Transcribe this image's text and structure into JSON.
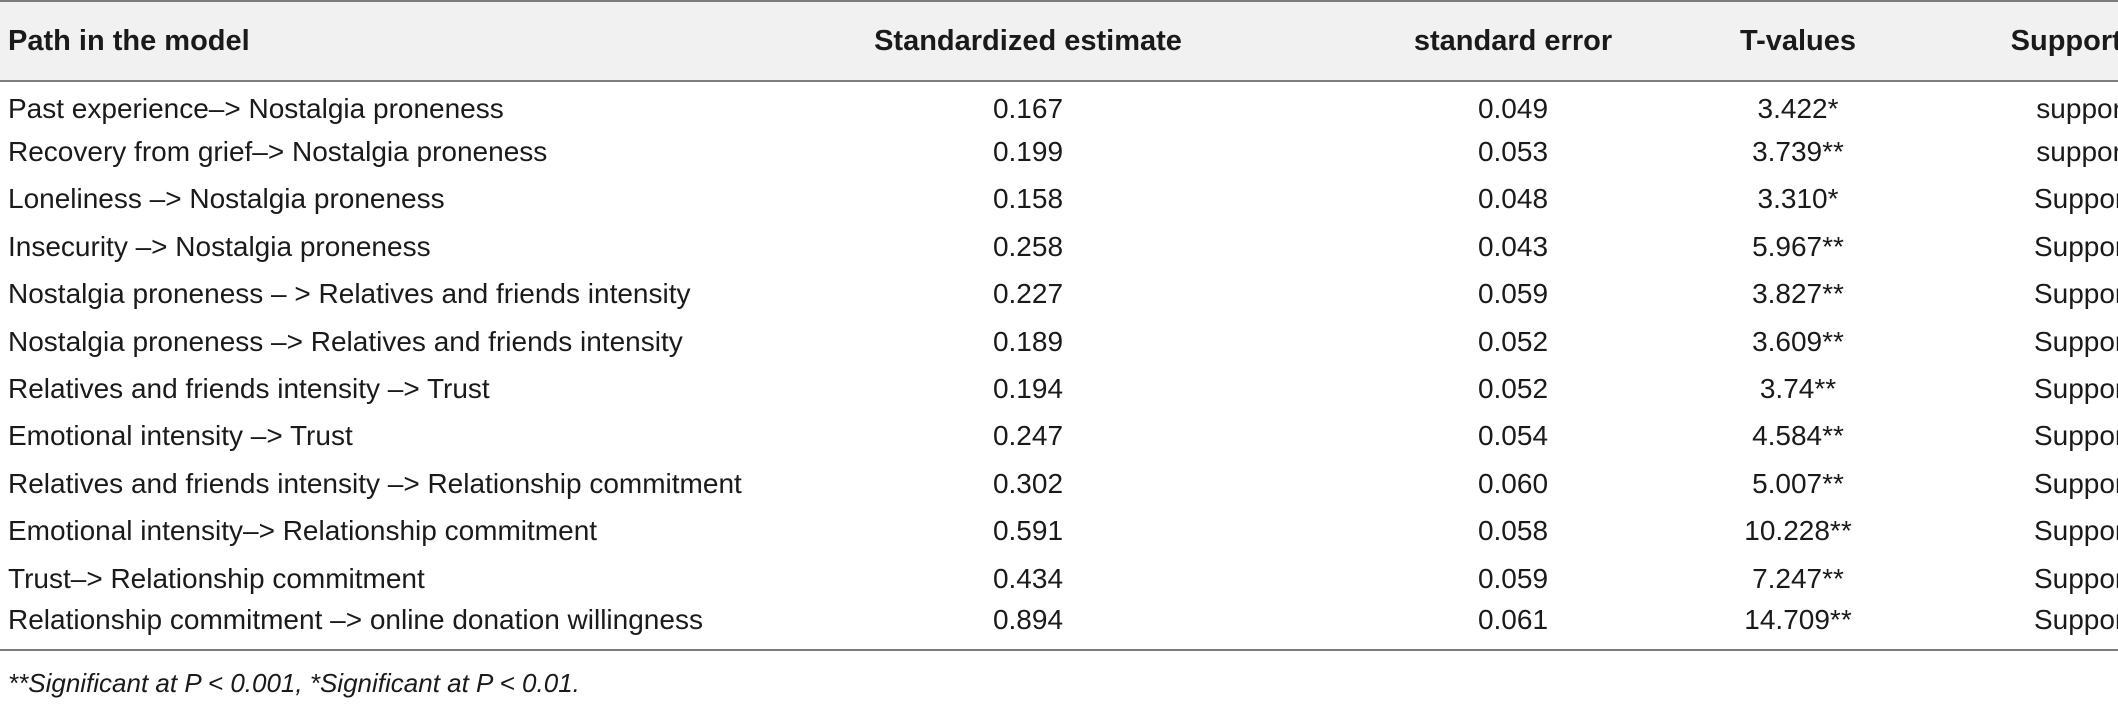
{
  "table": {
    "headers": {
      "path": "Path in the model",
      "estimate": "Standardized estimate",
      "std_error": "standard error",
      "t_values": "T-values",
      "support": "Support or not"
    },
    "rows": [
      {
        "path": "Past experience–> Nostalgia proneness",
        "estimate": "0.167",
        "std_error": "0.049",
        "t_value": "3.422*",
        "support": "support"
      },
      {
        "path": "Recovery from grief–> Nostalgia proneness",
        "estimate": "0.199",
        "std_error": "0.053",
        "t_value": "3.739**",
        "support": "support"
      },
      {
        "path": "Loneliness –> Nostalgia proneness",
        "estimate": "0.158",
        "std_error": "0.048",
        "t_value": "3.310*",
        "support": "Support"
      },
      {
        "path": "Insecurity –> Nostalgia proneness",
        "estimate": "0.258",
        "std_error": "0.043",
        "t_value": "5.967**",
        "support": "Support"
      },
      {
        "path": "Nostalgia proneness – > Relatives and friends intensity",
        "estimate": "0.227",
        "std_error": "0.059",
        "t_value": "3.827**",
        "support": "Support"
      },
      {
        "path": "Nostalgia proneness –> Relatives and friends intensity",
        "estimate": "0.189",
        "std_error": "0.052",
        "t_value": "3.609**",
        "support": "Support"
      },
      {
        "path": "Relatives and friends intensity –> Trust",
        "estimate": "0.194",
        "std_error": "0.052",
        "t_value": "3.74**",
        "support": "Support"
      },
      {
        "path": "Emotional intensity –> Trust",
        "estimate": "0.247",
        "std_error": "0.054",
        "t_value": "4.584**",
        "support": "Support"
      },
      {
        "path": "Relatives and friends intensity –> Relationship commitment",
        "estimate": "0.302",
        "std_error": "0.060",
        "t_value": "5.007**",
        "support": "Support"
      },
      {
        "path": "Emotional intensity–> Relationship commitment",
        "estimate": "0.591",
        "std_error": "0.058",
        "t_value": "10.228**",
        "support": "Support"
      },
      {
        "path": "Trust–> Relationship commitment",
        "estimate": "0.434",
        "std_error": "0.059",
        "t_value": "7.247**",
        "support": "Support"
      },
      {
        "path": "Relationship commitment –> online donation willingness",
        "estimate": "0.894",
        "std_error": "0.061",
        "t_value": "14.709**",
        "support": "Support"
      }
    ]
  },
  "footnote": "**Significant at P < 0.001, *Significant at P < 0.01."
}
